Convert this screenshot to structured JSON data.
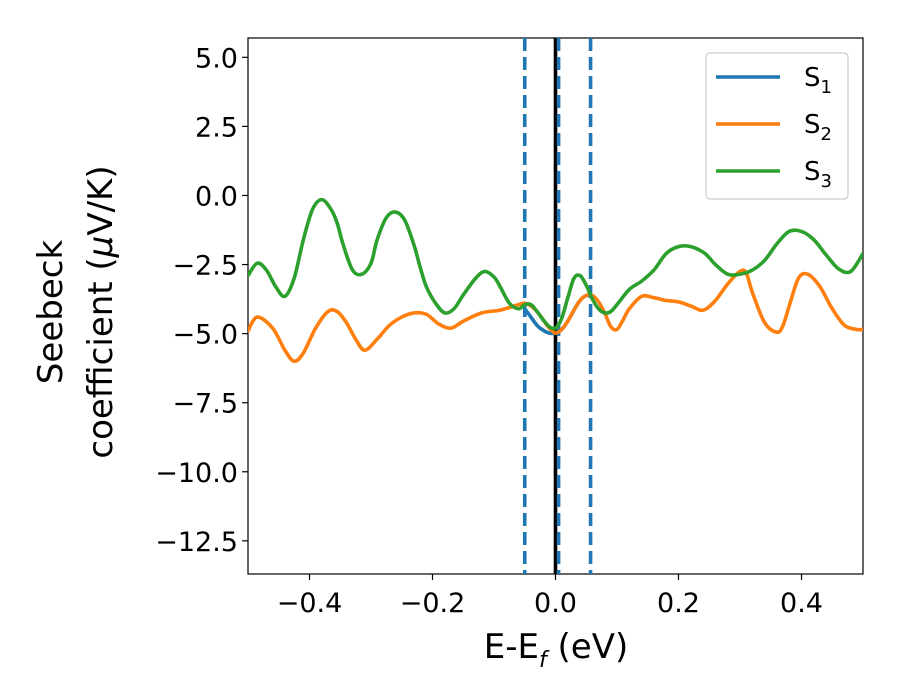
{
  "chart_data": {
    "type": "line",
    "title": "",
    "xlabel_main": "E-E",
    "xlabel_sub": "f",
    "xlabel_tail": " (eV)",
    "ylabel_line1": "Seebeck",
    "ylabel_line2_prefix": "coefficient  (",
    "ylabel_mu": "μ",
    "ylabel_line2_suffix": "V/K)",
    "xlim": [
      -0.5,
      0.5
    ],
    "ylim": [
      -13.7,
      5.7
    ],
    "xticks": [
      -0.4,
      -0.2,
      0.0,
      0.2,
      0.4
    ],
    "xtick_labels": [
      "−0.4",
      "−0.2",
      "0.0",
      "0.2",
      "0.4"
    ],
    "yticks": [
      5.0,
      2.5,
      0.0,
      -2.5,
      -5.0,
      -7.5,
      -10.0,
      -12.5
    ],
    "ytick_labels": [
      "5.0",
      "2.5",
      "0.0",
      "−2.5",
      "−5.0",
      "−7.5",
      "−10.0",
      "−12.5"
    ],
    "grid": false,
    "legend_position": "top-right",
    "vlines": [
      {
        "x": 0.0,
        "style": "solid",
        "color": "#000000"
      },
      {
        "x": -0.05,
        "style": "dashed",
        "color": "#1f77b4"
      },
      {
        "x": 0.005,
        "style": "dashed",
        "color": "#1f77b4"
      },
      {
        "x": 0.057,
        "style": "dashed",
        "color": "#1f77b4"
      }
    ],
    "series": [
      {
        "name_main": "S",
        "name_sub": "1",
        "color": "#1f77b4",
        "x": [
          -0.05,
          -0.04,
          -0.03,
          -0.02,
          -0.01,
          0.0,
          0.01,
          0.02,
          0.03,
          0.04,
          0.05,
          0.057
        ],
        "y": [
          -4.1,
          -4.4,
          -4.7,
          -4.88,
          -4.98,
          -4.98,
          -4.85,
          -4.55,
          -4.15,
          -3.8,
          -3.62,
          -3.65
        ]
      },
      {
        "name_main": "S",
        "name_sub": "2",
        "color": "#ff7f0e",
        "x": [
          -0.5,
          -0.485,
          -0.46,
          -0.44,
          -0.425,
          -0.41,
          -0.39,
          -0.37,
          -0.355,
          -0.34,
          -0.325,
          -0.31,
          -0.29,
          -0.27,
          -0.25,
          -0.23,
          -0.21,
          -0.19,
          -0.17,
          -0.15,
          -0.12,
          -0.09,
          -0.06,
          -0.05,
          -0.04,
          -0.03,
          -0.02,
          -0.01,
          0.0,
          0.01,
          0.02,
          0.03,
          0.04,
          0.05,
          0.06,
          0.07,
          0.08,
          0.09,
          0.1,
          0.11,
          0.12,
          0.14,
          0.16,
          0.18,
          0.2,
          0.22,
          0.24,
          0.26,
          0.28,
          0.3,
          0.31,
          0.32,
          0.34,
          0.36,
          0.37,
          0.38,
          0.395,
          0.41,
          0.43,
          0.45,
          0.47,
          0.49,
          0.5
        ],
        "y": [
          -4.9,
          -4.4,
          -4.8,
          -5.6,
          -6.0,
          -5.7,
          -4.8,
          -4.2,
          -4.2,
          -4.6,
          -5.2,
          -5.6,
          -5.2,
          -4.7,
          -4.4,
          -4.25,
          -4.3,
          -4.65,
          -4.8,
          -4.55,
          -4.25,
          -4.15,
          -3.95,
          -3.9,
          -4.0,
          -4.2,
          -4.5,
          -4.8,
          -4.98,
          -4.85,
          -4.55,
          -4.15,
          -3.8,
          -3.62,
          -3.62,
          -3.85,
          -4.25,
          -4.75,
          -4.85,
          -4.5,
          -4.1,
          -3.65,
          -3.7,
          -3.8,
          -3.85,
          -4.0,
          -4.15,
          -3.8,
          -3.2,
          -2.75,
          -2.8,
          -3.5,
          -4.6,
          -4.95,
          -4.7,
          -4.0,
          -3.0,
          -2.85,
          -3.3,
          -4.1,
          -4.7,
          -4.85,
          -4.85
        ]
      },
      {
        "name_main": "S",
        "name_sub": "3",
        "color": "#2ca02c",
        "x": [
          -0.5,
          -0.485,
          -0.47,
          -0.455,
          -0.44,
          -0.425,
          -0.41,
          -0.395,
          -0.38,
          -0.365,
          -0.355,
          -0.345,
          -0.33,
          -0.315,
          -0.3,
          -0.29,
          -0.275,
          -0.26,
          -0.245,
          -0.23,
          -0.22,
          -0.21,
          -0.195,
          -0.18,
          -0.165,
          -0.15,
          -0.13,
          -0.115,
          -0.1,
          -0.09,
          -0.075,
          -0.06,
          -0.05,
          -0.04,
          -0.03,
          -0.02,
          -0.01,
          0.0,
          0.01,
          0.02,
          0.03,
          0.04,
          0.05,
          0.06,
          0.07,
          0.08,
          0.09,
          0.1,
          0.12,
          0.14,
          0.16,
          0.18,
          0.2,
          0.22,
          0.24,
          0.25,
          0.26,
          0.28,
          0.3,
          0.32,
          0.34,
          0.36,
          0.38,
          0.4,
          0.42,
          0.44,
          0.46,
          0.48,
          0.5
        ],
        "y": [
          -2.9,
          -2.45,
          -2.7,
          -3.3,
          -3.65,
          -3.0,
          -1.6,
          -0.5,
          -0.15,
          -0.5,
          -1.0,
          -1.8,
          -2.7,
          -2.85,
          -2.45,
          -1.6,
          -0.8,
          -0.6,
          -0.9,
          -1.8,
          -2.6,
          -3.3,
          -3.9,
          -4.25,
          -4.1,
          -3.6,
          -3.0,
          -2.75,
          -2.95,
          -3.3,
          -3.9,
          -4.1,
          -3.95,
          -3.95,
          -4.2,
          -4.5,
          -4.75,
          -4.8,
          -4.45,
          -3.7,
          -3.0,
          -2.9,
          -3.25,
          -3.75,
          -4.1,
          -4.25,
          -4.2,
          -3.95,
          -3.4,
          -3.1,
          -2.7,
          -2.1,
          -1.85,
          -1.85,
          -2.05,
          -2.25,
          -2.5,
          -2.85,
          -2.85,
          -2.7,
          -2.35,
          -1.75,
          -1.3,
          -1.3,
          -1.6,
          -2.15,
          -2.65,
          -2.75,
          -2.1
        ]
      }
    ]
  }
}
